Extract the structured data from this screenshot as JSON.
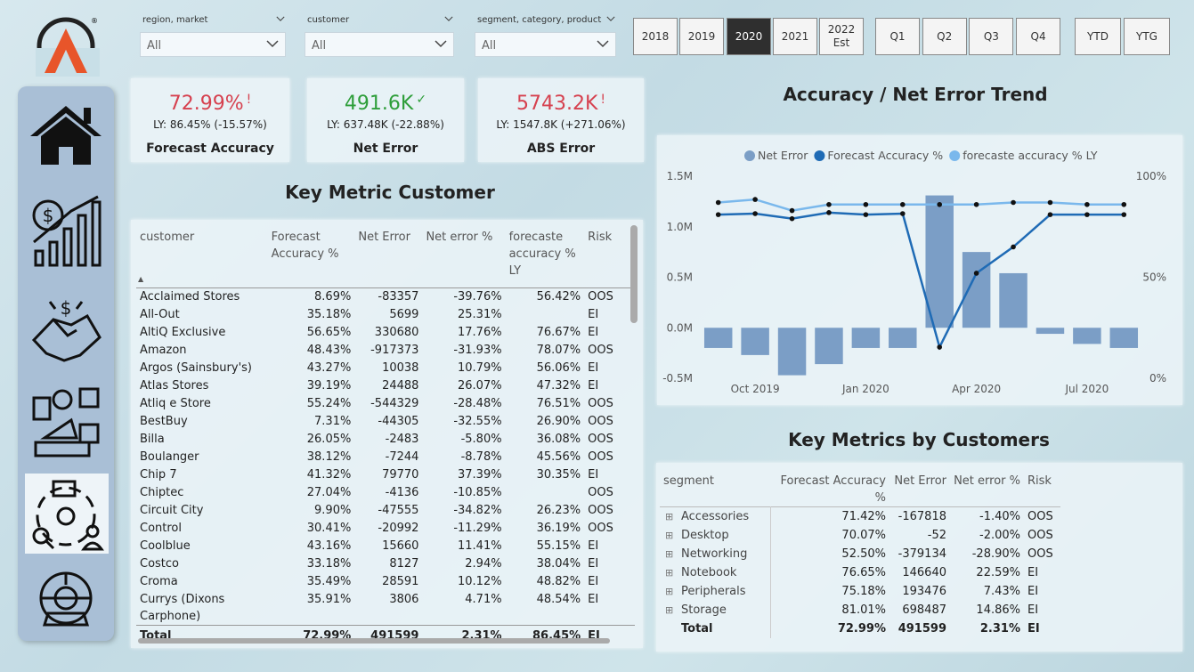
{
  "filters": [
    {
      "label": "region, market",
      "value": "All"
    },
    {
      "label": "customer",
      "value": "All"
    },
    {
      "label": "segment, category, product",
      "value": "All"
    }
  ],
  "years": [
    "2018",
    "2019",
    "2020",
    "2021",
    "2022\nEst"
  ],
  "quarters": [
    "Q1",
    "Q2",
    "Q3",
    "Q4"
  ],
  "periods": [
    "YTD",
    "YTG"
  ],
  "kpis": [
    {
      "value": "72.99%",
      "ly": "LY: 86.45% (-15.57%)",
      "label": "Forecast Accuracy",
      "color": "#d6414f"
    },
    {
      "value": "491.6K",
      "ly": "LY: 637.48K (-22.88%)",
      "label": "Net Error",
      "color": "#2e9e3a"
    },
    {
      "value": "5743.2K",
      "ly": "LY: 1547.8K (+271.06%)",
      "label": "ABS Error",
      "color": "#d6414f"
    }
  ],
  "customer_table": {
    "title": "Key Metric Customer",
    "columns": [
      "customer",
      "Forecast Accuracy %",
      "Net Error",
      "Net error %",
      "forecaste accuracy % LY",
      "Risk"
    ],
    "rows": [
      [
        "Acclaimed Stores",
        "8.69%",
        "-83357",
        "-39.76%",
        "56.42%",
        "OOS"
      ],
      [
        "All-Out",
        "35.18%",
        "5699",
        "25.31%",
        null,
        "EI"
      ],
      [
        "AltiQ Exclusive",
        "56.65%",
        "330680",
        "17.76%",
        "76.67%",
        "EI"
      ],
      [
        "Amazon",
        "48.43%",
        "-917373",
        "-31.93%",
        "78.07%",
        "OOS"
      ],
      [
        "Argos (Sainsbury's)",
        "43.27%",
        "10038",
        "10.79%",
        "56.06%",
        "EI"
      ],
      [
        "Atlas Stores",
        "39.19%",
        "24488",
        "26.07%",
        "47.32%",
        "EI"
      ],
      [
        "Atliq e Store",
        "55.24%",
        "-544329",
        "-28.48%",
        "76.51%",
        "OOS"
      ],
      [
        "BestBuy",
        "7.31%",
        "-44305",
        "-32.55%",
        "26.90%",
        "OOS"
      ],
      [
        "Billa",
        "26.05%",
        "-2483",
        "-5.80%",
        "36.08%",
        "OOS"
      ],
      [
        "Boulanger",
        "38.12%",
        "-7244",
        "-8.78%",
        "45.56%",
        "OOS"
      ],
      [
        "Chip 7",
        "41.32%",
        "79770",
        "37.39%",
        "30.35%",
        "EI"
      ],
      [
        "Chiptec",
        "27.04%",
        "-4136",
        "-10.85%",
        null,
        "OOS"
      ],
      [
        "Circuit City",
        "9.90%",
        "-47555",
        "-34.82%",
        "26.23%",
        "OOS"
      ],
      [
        "Control",
        "30.41%",
        "-20992",
        "-11.29%",
        "36.19%",
        "OOS"
      ],
      [
        "Coolblue",
        "43.16%",
        "15660",
        "11.41%",
        "55.15%",
        "EI"
      ],
      [
        "Costco",
        "33.18%",
        "8127",
        "2.94%",
        "38.04%",
        "EI"
      ],
      [
        "Croma",
        "35.49%",
        "28591",
        "10.12%",
        "48.82%",
        "EI"
      ],
      [
        "Currys (Dixons Carphone)",
        "35.91%",
        "3806",
        "4.71%",
        "48.54%",
        "EI"
      ]
    ],
    "total": [
      "Total",
      "72.99%",
      "491599",
      "2.31%",
      "86.45%",
      "EI"
    ]
  },
  "chart_data": {
    "type": "combo",
    "title": "Accuracy / Net Error Trend",
    "x": [
      "2019-09",
      "2019-10",
      "2019-11",
      "2019-12",
      "2020-01",
      "2020-02",
      "2020-03",
      "2020-04",
      "2020-05",
      "2020-06",
      "2020-07",
      "2020-08"
    ],
    "xticks": [
      {
        "value": "2019-10",
        "label": "Oct 2019"
      },
      {
        "value": "2020-01",
        "label": "Jan 2020"
      },
      {
        "value": "2020-04",
        "label": "Apr 2020"
      },
      {
        "value": "2020-07",
        "label": "Jul 2020"
      }
    ],
    "ylim": [
      -0.5,
      1.5
    ],
    "yticks": [
      {
        "value": -0.5,
        "label": "-0.5M"
      },
      {
        "value": 0,
        "label": "0.0M"
      },
      {
        "value": 0.5,
        "label": "0.5M"
      },
      {
        "value": 1,
        "label": "1.0M"
      },
      {
        "value": 1.5,
        "label": "1.5M"
      }
    ],
    "y2lim": [
      0,
      100
    ],
    "y2ticks": [
      {
        "value": 0,
        "label": "0%"
      },
      {
        "value": 50,
        "label": "50%"
      },
      {
        "value": 100,
        "label": "100%"
      }
    ],
    "grid": false,
    "series": [
      {
        "name": "Net Error",
        "type": "bar",
        "color": "#7b9ec6",
        "values": [
          -0.2,
          -0.27,
          -0.47,
          -0.36,
          -0.2,
          -0.2,
          1.31,
          0.75,
          0.54,
          -0.06,
          -0.16,
          -0.2
        ]
      },
      {
        "name": "Forecast Accuracy %",
        "type": "line",
        "axis": "y2",
        "color": "#1f6bb5",
        "values": [
          81,
          81.5,
          79,
          82,
          81,
          81.5,
          15.4,
          52,
          65,
          81,
          81,
          81
        ]
      },
      {
        "name": "forecaste accuracy % LY",
        "type": "line",
        "axis": "y2",
        "color": "#7ab8ec",
        "values": [
          87,
          88.5,
          83,
          86,
          86,
          86,
          86,
          86,
          87,
          87,
          86,
          86
        ]
      }
    ]
  },
  "segment_table": {
    "title": "Key Metrics by Customers",
    "columns": [
      "segment",
      "Forecast Accuracy %",
      "Net Error",
      "Net error %",
      "Risk"
    ],
    "rows": [
      [
        "Accessories",
        "71.42%",
        "-167818",
        "-1.40%",
        "OOS"
      ],
      [
        "Desktop",
        "70.07%",
        "-52",
        "-2.00%",
        "OOS"
      ],
      [
        "Networking",
        "52.50%",
        "-379134",
        "-28.90%",
        "OOS"
      ],
      [
        "Notebook",
        "76.65%",
        "146640",
        "22.59%",
        "EI"
      ],
      [
        "Peripherals",
        "75.18%",
        "193476",
        "7.43%",
        "EI"
      ],
      [
        "Storage",
        "81.01%",
        "698487",
        "14.86%",
        "EI"
      ]
    ],
    "total": [
      "Total",
      "72.99%",
      "491599",
      "2.31%",
      "EI"
    ]
  }
}
